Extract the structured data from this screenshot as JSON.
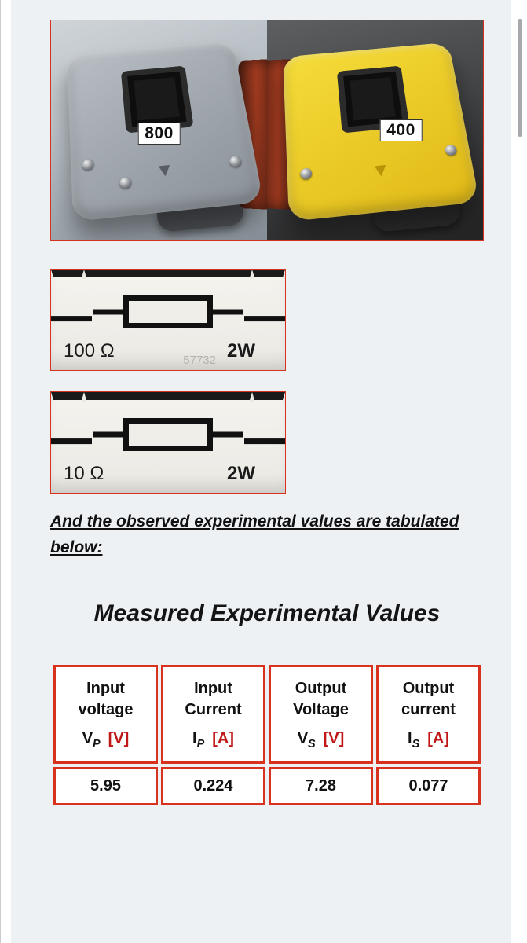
{
  "coils": {
    "left_label": "800",
    "right_label": "400"
  },
  "resistors": [
    {
      "value": "100 Ω",
      "power": "2W",
      "faint": "57732"
    },
    {
      "value": "10 Ω",
      "power": "2W",
      "faint": ""
    }
  ],
  "caption": "And the observed experimental values are tabulated below:",
  "table_title": "Measured Experimental Values",
  "table": {
    "columns": [
      {
        "line1": "Input",
        "line2": "voltage",
        "sym": "V",
        "sub": "P",
        "unit": "[V]",
        "unit_class": "v"
      },
      {
        "line1": "Input",
        "line2": "Current",
        "sym": "I",
        "sub": "P",
        "unit": "[A]",
        "unit_class": "a"
      },
      {
        "line1": "Output",
        "line2": "Voltage",
        "sym": "V",
        "sub": "S",
        "unit": "[V]",
        "unit_class": "v"
      },
      {
        "line1": "Output",
        "line2": "current",
        "sym": "I",
        "sub": "S",
        "unit": "[A]",
        "unit_class": "a"
      }
    ],
    "rows": [
      [
        "5.95",
        "0.224",
        "7.28",
        "0.077"
      ]
    ]
  },
  "colors": {
    "page_bg": "#eef1f4",
    "accent_border": "#d8321e",
    "text": "#111111"
  }
}
